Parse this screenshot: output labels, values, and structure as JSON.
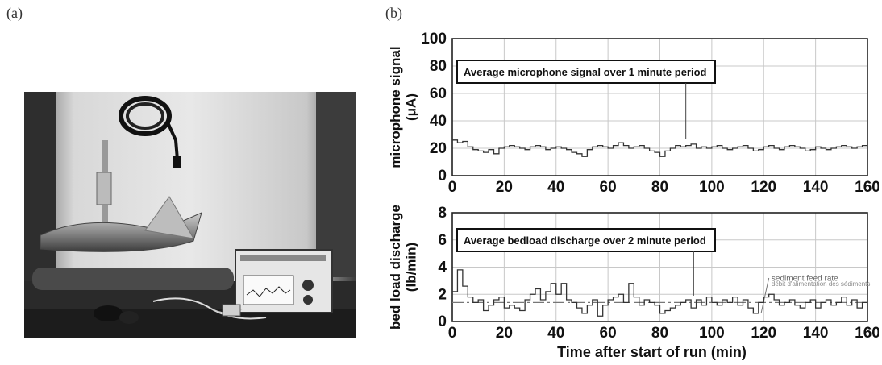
{
  "panels": {
    "a": "(a)",
    "b": "(b)"
  },
  "photo": {
    "description_icon": "photo-of-hydrophone-and-recorder"
  },
  "chart_data": [
    {
      "type": "line",
      "ylabel": "microphone signal (μA)",
      "xlabel": "",
      "xlim": [
        0,
        160
      ],
      "ylim": [
        0,
        100
      ],
      "xticks": [
        0,
        20,
        40,
        60,
        80,
        100,
        120,
        140,
        160
      ],
      "yticks": [
        0,
        20,
        40,
        60,
        80,
        100
      ],
      "grid": true,
      "annotation": "Average microphone signal over 1 minute period",
      "series": [
        {
          "x": [
            0,
            2,
            4,
            6,
            8,
            10,
            12,
            14,
            16,
            18,
            20,
            22,
            24,
            26,
            28,
            30,
            32,
            34,
            36,
            38,
            40,
            42,
            44,
            46,
            48,
            50,
            52,
            54,
            56,
            58,
            60,
            62,
            64,
            66,
            68,
            70,
            72,
            74,
            76,
            78,
            80,
            82,
            84,
            86,
            88,
            90,
            92,
            94,
            96,
            98,
            100,
            102,
            104,
            106,
            108,
            110,
            112,
            114,
            116,
            118,
            120,
            122,
            124,
            126,
            128,
            130,
            132,
            134,
            136,
            138,
            140,
            142,
            144,
            146,
            148,
            150,
            152,
            154,
            156,
            158,
            160
          ],
          "values": [
            26,
            24,
            25,
            21,
            19,
            18,
            17,
            19,
            16,
            20,
            21,
            22,
            21,
            20,
            19,
            21,
            22,
            21,
            19,
            20,
            21,
            20,
            19,
            17,
            16,
            14,
            19,
            21,
            22,
            21,
            20,
            22,
            24,
            22,
            20,
            21,
            22,
            20,
            18,
            17,
            14,
            18,
            20,
            22,
            21,
            22,
            23,
            20,
            21,
            20,
            21,
            22,
            20,
            19,
            20,
            21,
            22,
            20,
            18,
            19,
            21,
            22,
            20,
            19,
            21,
            22,
            21,
            20,
            18,
            19,
            21,
            20,
            19,
            20,
            21,
            22,
            21,
            20,
            21,
            22,
            21
          ]
        }
      ]
    },
    {
      "type": "line",
      "ylabel": "bed load discharge (lb/min)",
      "xlabel": "Time after start of run (min)",
      "xlim": [
        0,
        160
      ],
      "ylim": [
        0,
        8
      ],
      "xticks": [
        0,
        20,
        40,
        60,
        80,
        100,
        120,
        140,
        160
      ],
      "yticks": [
        0,
        2,
        4,
        6,
        8
      ],
      "grid": true,
      "annotation": "Average bedload discharge over 2 minute period",
      "reference_line": {
        "y": 1.4,
        "label": "sediment feed rate",
        "sublabel": "débit d'alimentation des sédiments"
      },
      "series": [
        {
          "x": [
            0,
            2,
            4,
            6,
            8,
            10,
            12,
            14,
            16,
            18,
            20,
            22,
            24,
            26,
            28,
            30,
            32,
            34,
            36,
            38,
            40,
            42,
            44,
            46,
            48,
            50,
            52,
            54,
            56,
            58,
            60,
            62,
            64,
            66,
            68,
            70,
            72,
            74,
            76,
            78,
            80,
            82,
            84,
            86,
            88,
            90,
            92,
            94,
            96,
            98,
            100,
            102,
            104,
            106,
            108,
            110,
            112,
            114,
            116,
            118,
            120,
            122,
            124,
            126,
            128,
            130,
            132,
            134,
            136,
            138,
            140,
            142,
            144,
            146,
            148,
            150,
            152,
            154,
            156,
            158
          ],
          "values": [
            2.2,
            3.8,
            2.6,
            1.8,
            1.4,
            1.6,
            0.8,
            1.2,
            1.6,
            1.8,
            1.0,
            1.2,
            1.0,
            0.8,
            1.6,
            2.0,
            2.4,
            1.6,
            2.2,
            2.8,
            2.0,
            2.8,
            1.6,
            1.4,
            1.0,
            0.6,
            1.2,
            1.6,
            0.4,
            1.2,
            1.6,
            1.8,
            2.0,
            1.4,
            2.8,
            1.8,
            1.2,
            1.6,
            1.4,
            1.2,
            0.6,
            0.8,
            1.0,
            1.2,
            1.4,
            1.6,
            1.0,
            1.6,
            1.2,
            1.8,
            1.4,
            1.2,
            1.6,
            1.4,
            1.8,
            1.2,
            1.6,
            1.0,
            0.6,
            1.4,
            1.8,
            2.0,
            1.6,
            1.2,
            1.4,
            1.6,
            1.2,
            1.0,
            1.4,
            1.6,
            1.0,
            1.4,
            1.6,
            1.2,
            1.4,
            1.8,
            1.2,
            1.6,
            1.0,
            1.4
          ]
        }
      ]
    }
  ]
}
